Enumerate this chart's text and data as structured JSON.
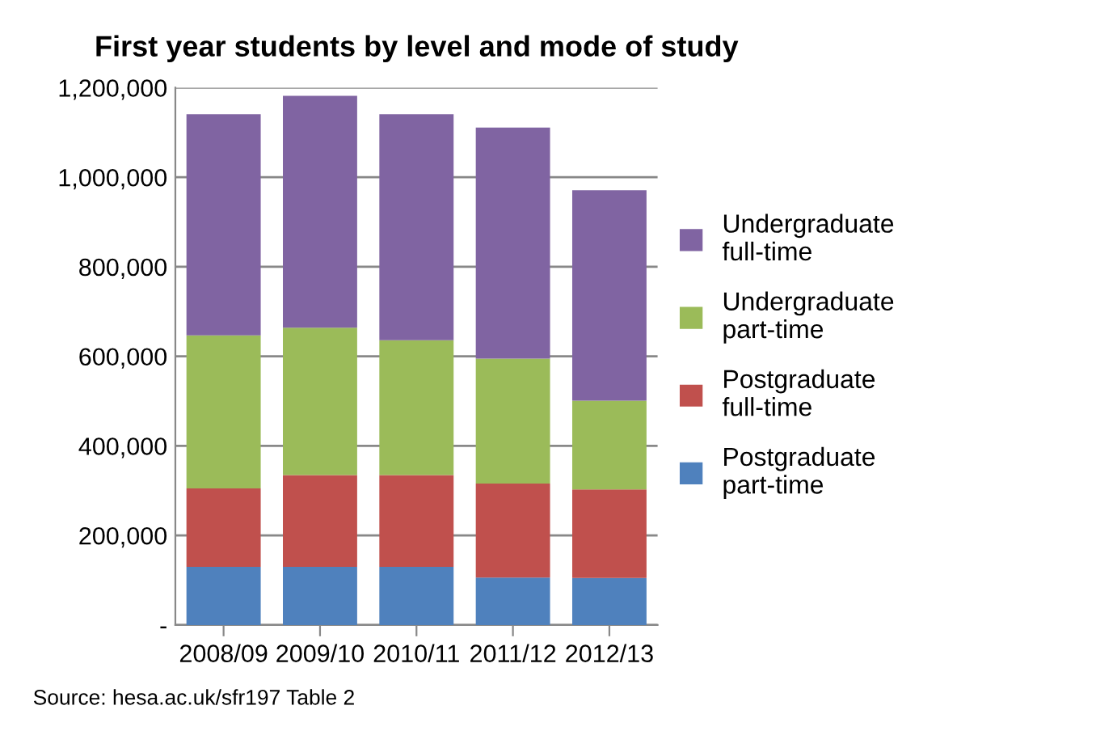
{
  "chart_data": {
    "type": "bar",
    "title": "First year students by level and mode of study",
    "categories": [
      "2008/09",
      "2009/10",
      "2010/11",
      "2011/12",
      "2012/13"
    ],
    "stacked": true,
    "series": [
      {
        "name": "Postgraduate part-time",
        "color": "#4f81bd",
        "values": [
          130000,
          130000,
          130000,
          106000,
          105000
        ]
      },
      {
        "name": "Postgraduate full-time",
        "color": "#c0504d",
        "values": [
          175000,
          205000,
          205000,
          210000,
          198000
        ]
      },
      {
        "name": "Undergraduate part-time",
        "color": "#9bbb59",
        "values": [
          342000,
          329000,
          301000,
          279000,
          198000
        ]
      },
      {
        "name": "Undergraduate full-time",
        "color": "#8064a2",
        "values": [
          494000,
          518000,
          505000,
          516000,
          470000
        ]
      }
    ],
    "ylim": [
      0,
      1200000
    ],
    "yticks": [
      {
        "value": 0,
        "label": "-"
      },
      {
        "value": 200000,
        "label": "200,000"
      },
      {
        "value": 400000,
        "label": "400,000"
      },
      {
        "value": 600000,
        "label": "600,000"
      },
      {
        "value": 800000,
        "label": "800,000"
      },
      {
        "value": 1000000,
        "label": "1,000,000"
      },
      {
        "value": 1200000,
        "label": "1,200,000"
      }
    ],
    "grid": "y",
    "legend": "right",
    "annotations": [
      "Source: hesa.ac.uk/sfr197 Table 2"
    ]
  }
}
